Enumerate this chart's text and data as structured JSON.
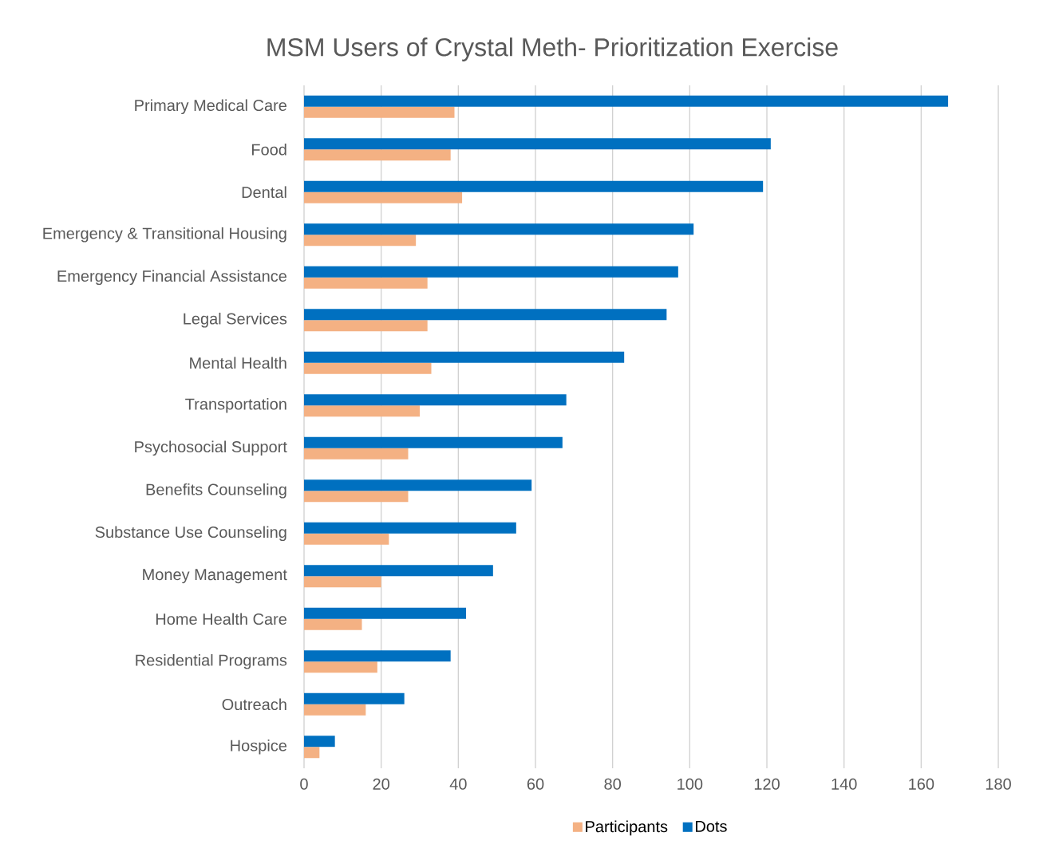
{
  "chart_data": {
    "type": "bar",
    "orientation": "horizontal",
    "title": "MSM Users of Crystal Meth- Prioritization Exercise",
    "categories": [
      "Primary Medical Care",
      "Food",
      "Dental",
      "Emergency & Transitional Housing",
      "Emergency Financial Assistance",
      "Legal Services",
      "Mental Health",
      "Transportation",
      "Psychosocial Support",
      "Benefits Counseling",
      "Substance Use Counseling",
      "Money Management",
      "Home Health Care",
      "Residential Programs",
      "Outreach",
      "Hospice"
    ],
    "series": [
      {
        "name": "Participants",
        "color": "#f4b183",
        "values": [
          39,
          38,
          41,
          29,
          32,
          32,
          33,
          30,
          27,
          27,
          22,
          20,
          15,
          19,
          16,
          4
        ]
      },
      {
        "name": "Dots",
        "color": "#0070c0",
        "values": [
          167,
          121,
          119,
          101,
          97,
          94,
          83,
          68,
          67,
          59,
          55,
          49,
          42,
          38,
          26,
          8
        ]
      }
    ],
    "xlim": [
      0,
      180
    ],
    "xticks": [
      0,
      20,
      40,
      60,
      80,
      100,
      120,
      140,
      160,
      180
    ],
    "grid": "x",
    "legend": "bottom"
  }
}
